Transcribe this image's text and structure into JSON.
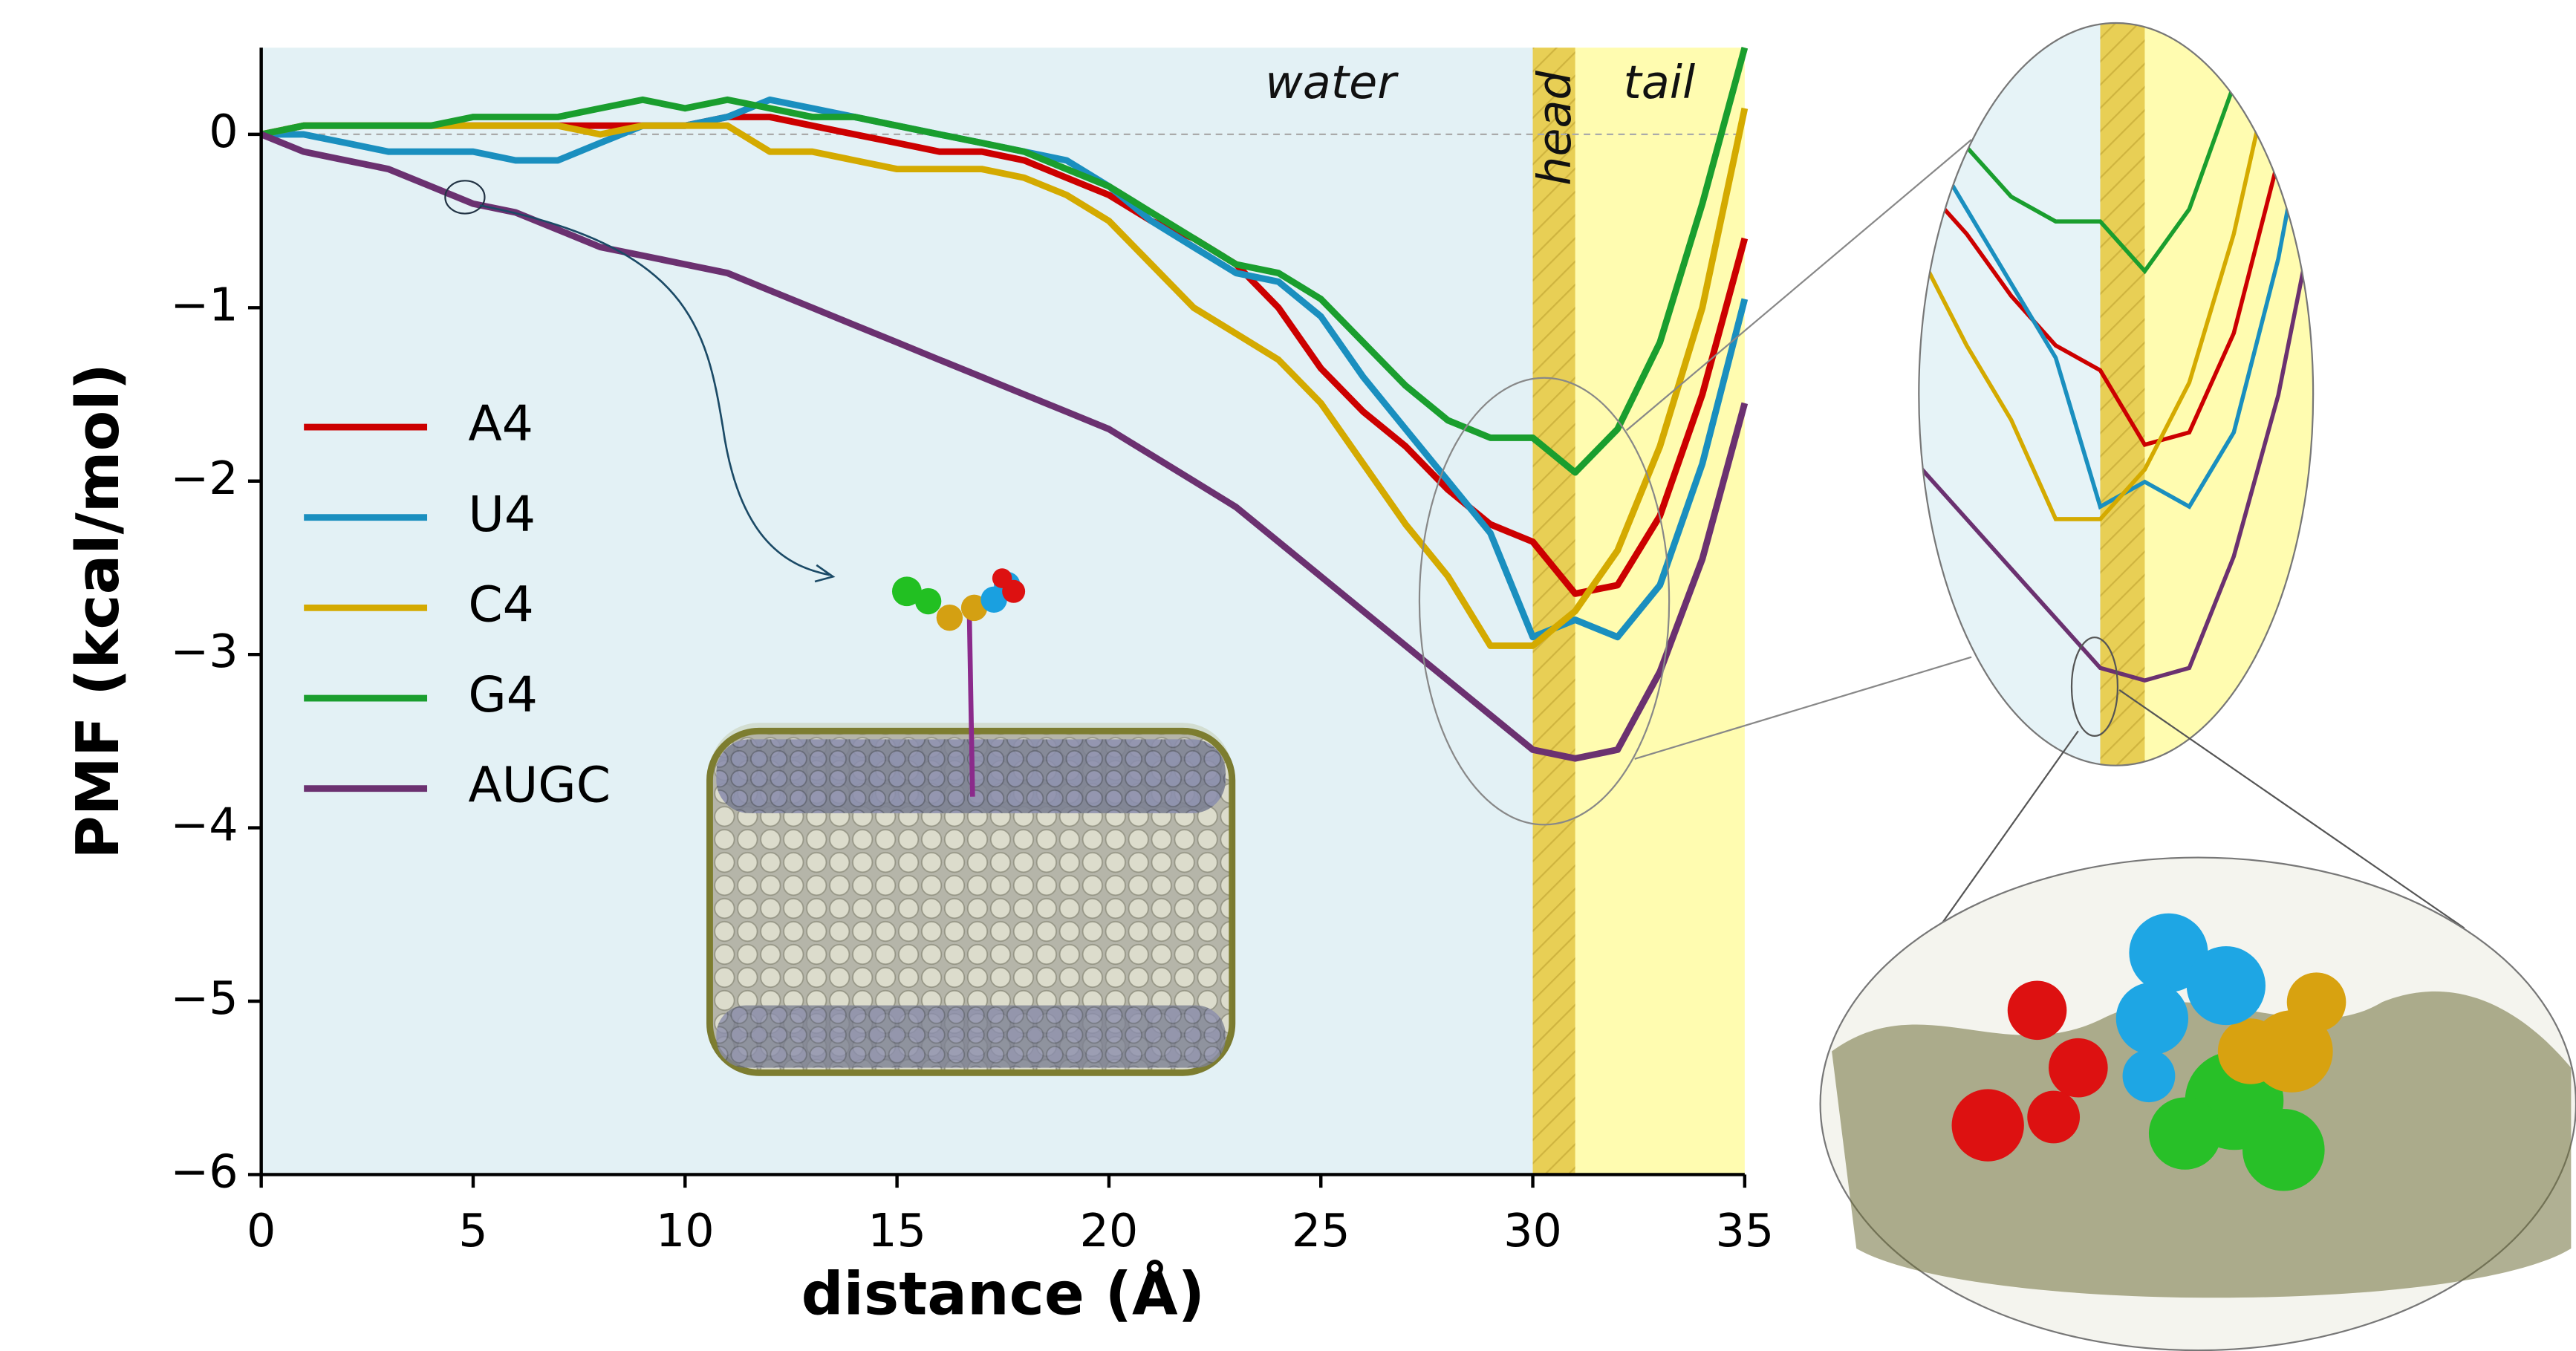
{
  "chart_data": {
    "type": "line",
    "x_label": "distance (Å)",
    "y_label": "PMF (kcal/mol)",
    "x": [
      0,
      1,
      2,
      3,
      4,
      5,
      6,
      7,
      8,
      9,
      10,
      11,
      12,
      13,
      14,
      15,
      16,
      17,
      18,
      19,
      20,
      21,
      22,
      23,
      24,
      25,
      26,
      27,
      28,
      29,
      30,
      31,
      32,
      33,
      34,
      35
    ],
    "series": [
      {
        "name": "A4",
        "color": "#cc0000",
        "values": [
          0,
          0.05,
          0.05,
          0.05,
          0.05,
          0.05,
          0.05,
          0.05,
          0.05,
          0.05,
          0.05,
          0.1,
          0.1,
          0.05,
          0.0,
          -0.05,
          -0.1,
          -0.1,
          -0.15,
          -0.25,
          -0.35,
          -0.5,
          -0.6,
          -0.75,
          -1.0,
          -1.35,
          -1.6,
          -1.8,
          -2.05,
          -2.25,
          -2.35,
          -2.65,
          -2.6,
          -2.2,
          -1.5,
          -0.6
        ]
      },
      {
        "name": "U4",
        "color": "#1a8fbf",
        "values": [
          0,
          0,
          -0.05,
          -0.1,
          -0.1,
          -0.1,
          -0.15,
          -0.15,
          -0.05,
          0.05,
          0.05,
          0.1,
          0.2,
          0.15,
          0.1,
          0.05,
          0,
          -0.05,
          -0.1,
          -0.15,
          -0.3,
          -0.5,
          -0.65,
          -0.8,
          -0.85,
          -1.05,
          -1.4,
          -1.7,
          -2.0,
          -2.3,
          -2.9,
          -2.8,
          -2.9,
          -2.6,
          -1.9,
          -0.95
        ]
      },
      {
        "name": "C4",
        "color": "#d4aa00",
        "values": [
          0,
          0.05,
          0.05,
          0.05,
          0.05,
          0.05,
          0.05,
          0.05,
          0,
          0.05,
          0.05,
          0.05,
          -0.1,
          -0.1,
          -0.15,
          -0.2,
          -0.2,
          -0.2,
          -0.25,
          -0.35,
          -0.5,
          -0.75,
          -1.0,
          -1.15,
          -1.3,
          -1.55,
          -1.9,
          -2.25,
          -2.55,
          -2.95,
          -2.95,
          -2.75,
          -2.4,
          -1.8,
          -1.0,
          0.15
        ]
      },
      {
        "name": "G4",
        "color": "#1a9e2e",
        "values": [
          0,
          0.05,
          0.05,
          0.05,
          0.05,
          0.1,
          0.1,
          0.1,
          0.15,
          0.2,
          0.15,
          0.2,
          0.15,
          0.1,
          0.1,
          0.05,
          0,
          -0.05,
          -0.1,
          -0.2,
          -0.3,
          -0.45,
          -0.6,
          -0.75,
          -0.8,
          -0.95,
          -1.2,
          -1.45,
          -1.65,
          -1.75,
          -1.75,
          -1.95,
          -1.7,
          -1.2,
          -0.4,
          0.5
        ]
      },
      {
        "name": "AUGC",
        "color": "#6b3170",
        "values": [
          0,
          -0.1,
          -0.15,
          -0.2,
          -0.3,
          -0.4,
          -0.45,
          -0.55,
          -0.65,
          -0.7,
          -0.75,
          -0.8,
          -0.9,
          -1.0,
          -1.1,
          -1.2,
          -1.3,
          -1.4,
          -1.5,
          -1.6,
          -1.7,
          -1.85,
          -2.0,
          -2.15,
          -2.35,
          -2.55,
          -2.75,
          -2.95,
          -3.15,
          -3.35,
          -3.55,
          -3.6,
          -3.55,
          -3.1,
          -2.45,
          -1.55
        ]
      }
    ],
    "xlim": [
      0,
      35
    ],
    "xticks": [
      0,
      5,
      10,
      15,
      20,
      25,
      30,
      35
    ],
    "ylim": [
      -6,
      0.5
    ],
    "yticks": [
      {
        "value": -6,
        "label": "−6"
      },
      {
        "value": -5,
        "label": "−5"
      },
      {
        "value": -4,
        "label": "−4"
      },
      {
        "value": -3,
        "label": "−3"
      },
      {
        "value": -2,
        "label": "−2"
      },
      {
        "value": -1,
        "label": "−1"
      },
      0
    ],
    "hlines": [
      0
    ],
    "regions": [
      {
        "label": "water",
        "start": 0,
        "end": 30,
        "color": "#e3f1f5"
      },
      {
        "label": "tail",
        "start": 30,
        "end": 35,
        "color": "#fffcb0"
      },
      {
        "label": "head",
        "start": 30,
        "end": 31,
        "color": "#e8cf55"
      }
    ],
    "legend": "center left"
  }
}
